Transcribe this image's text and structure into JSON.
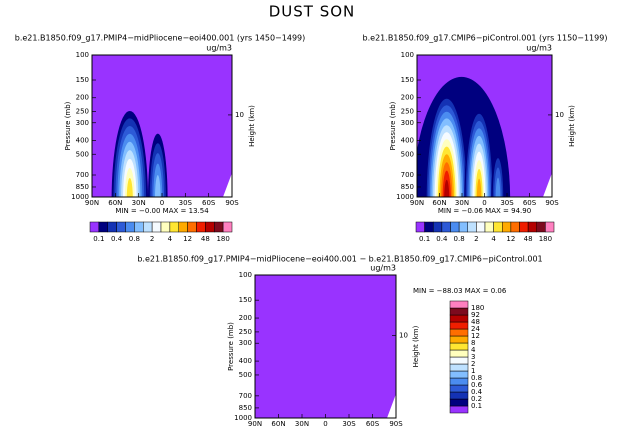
{
  "title": "DUST SON",
  "panels": [
    {
      "title": "b.e21.B1850.f09_g17.PMIP4−midPliocene−eoi400.001  (yrs 1450−1499)",
      "units": "ug/m3",
      "min_max": "MIN =   −0.00   MAX =   13.54"
    },
    {
      "title": "b.e21.B1850.f09_g17.CMIP6−piControl.001  (yrs 1150−1199)",
      "units": "ug/m3",
      "min_max": "MIN =   −0.06   MAX =   94.90"
    },
    {
      "title": "b.e21.B1850.f09_g17.PMIP4−midPliocene−eoi400.001  −  b.e21.B1850.f09_g17.CMIP6−piControl.001",
      "units": "ug/m3",
      "min_max": "MIN =  −88.03    MAX =    0.06"
    }
  ],
  "axes": {
    "ylabel": "Pressure  (mb)",
    "y2label": "Height  (km)",
    "ylim": [
      1000,
      100
    ],
    "log_y": true,
    "yticks": [
      100,
      150,
      200,
      250,
      300,
      400,
      500,
      700,
      850,
      1000
    ],
    "y2lim": [
      0,
      17.3
    ],
    "y2ticks": [
      10
    ],
    "xlim": [
      90,
      -90
    ],
    "xticks": [
      {
        "value": 90,
        "label": "90N"
      },
      {
        "value": 60,
        "label": "60N"
      },
      {
        "value": 30,
        "label": "30N"
      },
      {
        "value": 0,
        "label": "0"
      },
      {
        "value": -30,
        "label": "30S"
      },
      {
        "value": -60,
        "label": "60S"
      },
      {
        "value": -90,
        "label": "90S"
      }
    ]
  },
  "colorbar": {
    "levels": [
      0.1,
      0.2,
      0.4,
      0.6,
      0.8,
      1,
      2,
      3,
      4,
      8,
      12,
      24,
      48,
      92,
      180
    ],
    "colors": [
      "#9933ff",
      "#00007f",
      "#1432b4",
      "#2d5ad7",
      "#4b8cf0",
      "#82beff",
      "#bee1ff",
      "#f5fbff",
      "#ffffbe",
      "#ffe632",
      "#ffaa00",
      "#ff6e00",
      "#f01e00",
      "#b40000",
      "#7d0a1e",
      "#ff80c0"
    ]
  }
}
